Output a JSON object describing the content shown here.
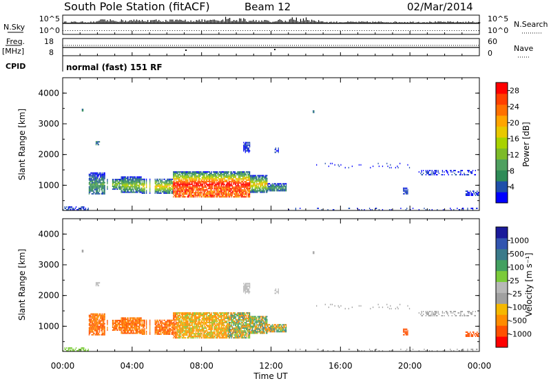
{
  "header": {
    "station": "South Pole Station (fitACF)",
    "beam": "Beam 12",
    "date": "02/Mar/2014"
  },
  "top_panels": {
    "nsky_label": "N.Sky",
    "nsky_ticks": [
      "10^5",
      "10^0"
    ],
    "nsearch_label": "N.Search",
    "nsearch_ticks": [
      "10^5",
      "10^0"
    ],
    "freq_label": "Freq.",
    "freq_unit": "[MHz]",
    "freq_ticks": [
      "18",
      "8"
    ],
    "nave_label": "Nave",
    "nave_ticks": [
      "60",
      "0"
    ],
    "cpid_label": "CPID",
    "cpid_value": "normal (fast) 151 RF"
  },
  "colors": {
    "power": [
      "#0000ff",
      "#1f4faa",
      "#2e8b57",
      "#4fa060",
      "#7dbb28",
      "#a8d200",
      "#e8c800",
      "#ffa500",
      "#ff7000",
      "#ff4000",
      "#ff0000"
    ],
    "velocity": [
      "#1a1a9a",
      "#3255b0",
      "#3a7a8a",
      "#43a060",
      "#7bcb3a",
      "#b8b8b8",
      "#a0a0a0",
      "#f5b800",
      "#ff8c00",
      "#ff5000",
      "#ff0000"
    ]
  },
  "chart_data": [
    {
      "type": "heatmap",
      "name": "power-panel",
      "xlabel": "",
      "ylabel": "Slant Range [km]",
      "xlim": [
        0,
        24
      ],
      "ylim": [
        180,
        4500
      ],
      "y_ticks": [
        "1000",
        "2000",
        "3000",
        "4000"
      ],
      "colorbar_label": "Power [dB]",
      "colorbar_ticks": [
        "4",
        "8",
        "12",
        "16",
        "20",
        "24",
        "28"
      ],
      "colorbar_range": [
        0,
        30
      ]
    },
    {
      "type": "heatmap",
      "name": "velocity-panel",
      "xlabel": "Time UT",
      "ylabel": "Slant Range [km]",
      "xlim": [
        0,
        24
      ],
      "ylim": [
        180,
        4500
      ],
      "x_ticks": [
        "00:00",
        "04:00",
        "08:00",
        "12:00",
        "16:00",
        "20:00",
        "00:00"
      ],
      "y_ticks": [
        "1000",
        "2000",
        "3000",
        "4000"
      ],
      "colorbar_label": "Velocity [m s⁻¹]",
      "colorbar_ticks": [
        "1000",
        "500",
        "100",
        "25",
        "-25",
        "-100",
        "-500",
        "-1000"
      ]
    }
  ]
}
